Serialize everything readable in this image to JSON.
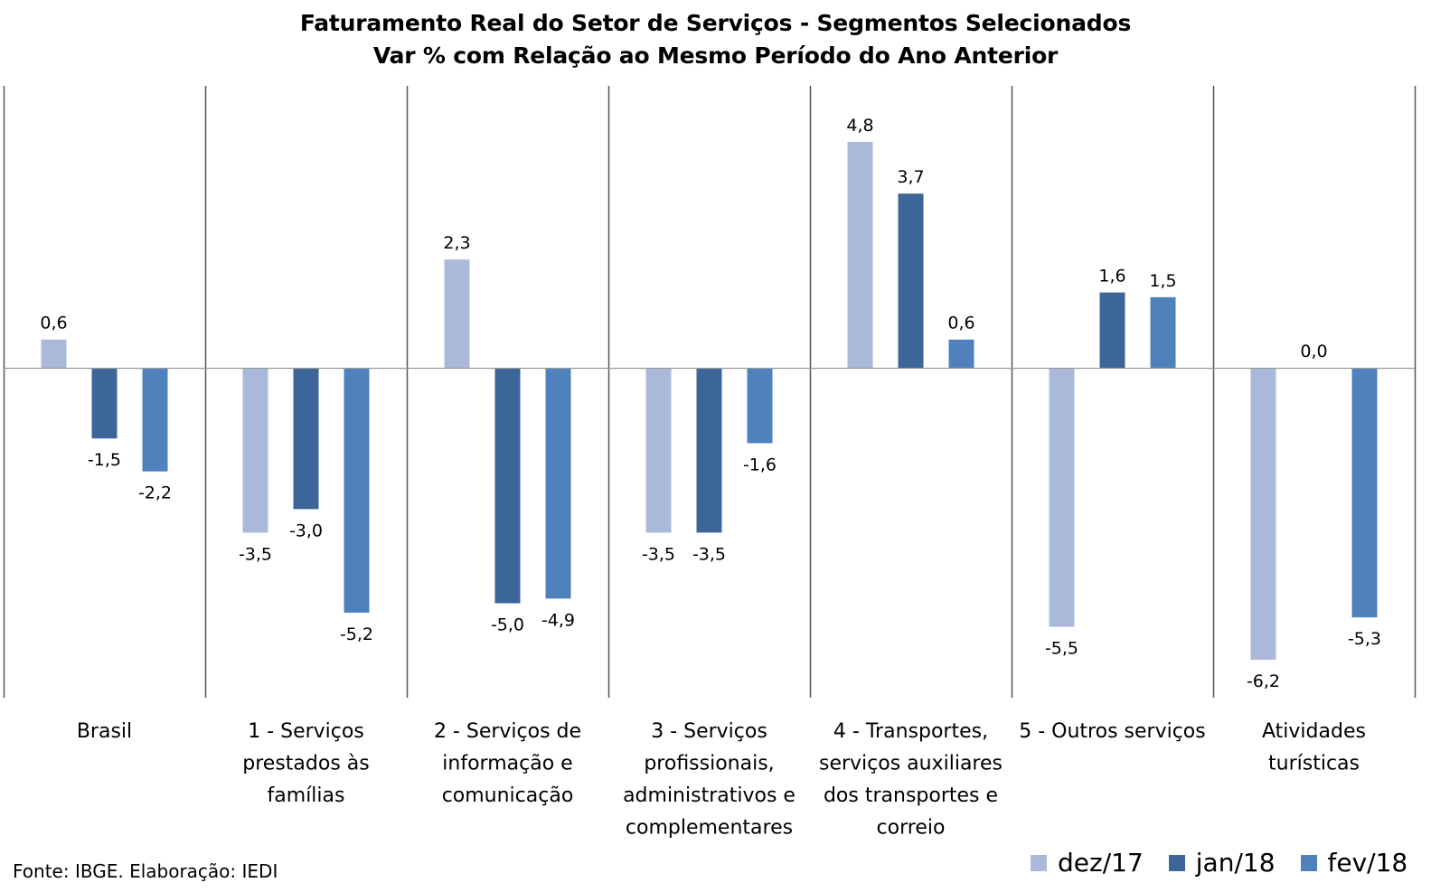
{
  "chart_data": {
    "type": "bar",
    "title": "Faturamento Real do Setor de Serviços - Segmentos Selecionados",
    "subtitle": "Var % com Relação ao Mesmo Período do Ano Anterior",
    "categories": [
      [
        "Brasil"
      ],
      [
        "1 - Serviços",
        "prestados às",
        "famílias"
      ],
      [
        "2 - Serviços de",
        "informação e",
        "comunicação"
      ],
      [
        "3 - Serviços",
        "profissionais,",
        "administrativos e",
        "complementares"
      ],
      [
        "4 - Transportes,",
        "serviços auxiliares",
        "dos transportes e",
        "correio"
      ],
      [
        "5 - Outros serviços"
      ],
      [
        "Atividades",
        "turísticas"
      ]
    ],
    "series": [
      {
        "name": "dez/17",
        "color": "#aab9d9",
        "values": [
          0.6,
          -3.5,
          2.3,
          -3.5,
          4.8,
          -5.5,
          -6.2
        ]
      },
      {
        "name": "jan/18",
        "color": "#3c6598",
        "values": [
          -1.5,
          -3.0,
          -5.0,
          -3.5,
          3.7,
          1.6,
          0.0
        ]
      },
      {
        "name": "fev/18",
        "color": "#4f81bd",
        "values": [
          -2.2,
          -5.2,
          -4.9,
          -1.6,
          0.6,
          1.5,
          -5.3
        ]
      }
    ],
    "value_labels": [
      [
        "0,6",
        "-3,5",
        "2,3",
        "-3,5",
        "4,8",
        "-5,5",
        "-6,2"
      ],
      [
        "-1,5",
        "-3,0",
        "-5,0",
        "-3,5",
        "3,7",
        "1,6",
        "0,0"
      ],
      [
        "-2,2",
        "-5,2",
        "-4,9",
        "-1,6",
        "0,6",
        "1,5",
        "-5,3"
      ]
    ],
    "ylim": [
      -7,
      6
    ],
    "grid": false,
    "legend_position": "bottom-right"
  },
  "source": "Fonte: IBGE. Elaboração: IEDI"
}
